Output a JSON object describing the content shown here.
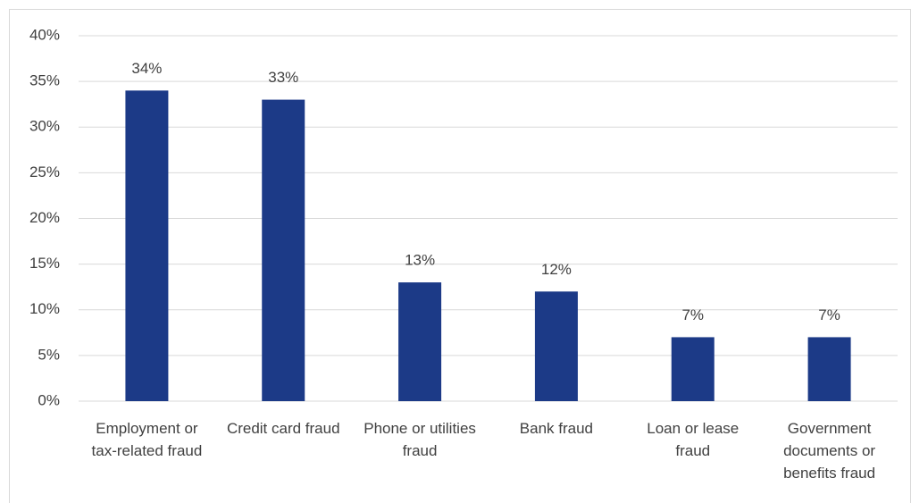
{
  "chart_data": {
    "type": "bar",
    "categories": [
      "Employment or tax-related fraud",
      "Credit card fraud",
      "Phone or utilities fraud",
      "Bank fraud",
      "Loan or lease fraud",
      "Government documents or benefits fraud"
    ],
    "values": [
      34,
      33,
      13,
      12,
      7,
      7
    ],
    "value_labels": [
      "34%",
      "33%",
      "13%",
      "12%",
      "7%",
      "7%"
    ],
    "color": "#1c3a87",
    "ylim": [
      0,
      40
    ],
    "yticks": [
      {
        "value": 0,
        "label": "0%"
      },
      {
        "value": 5,
        "label": "5%"
      },
      {
        "value": 10,
        "label": "10%"
      },
      {
        "value": 15,
        "label": "15%"
      },
      {
        "value": 20,
        "label": "20%"
      },
      {
        "value": 25,
        "label": "25%"
      },
      {
        "value": 30,
        "label": "30%"
      },
      {
        "value": 35,
        "label": "35%"
      },
      {
        "value": 40,
        "label": "40%"
      }
    ],
    "grid": true
  }
}
